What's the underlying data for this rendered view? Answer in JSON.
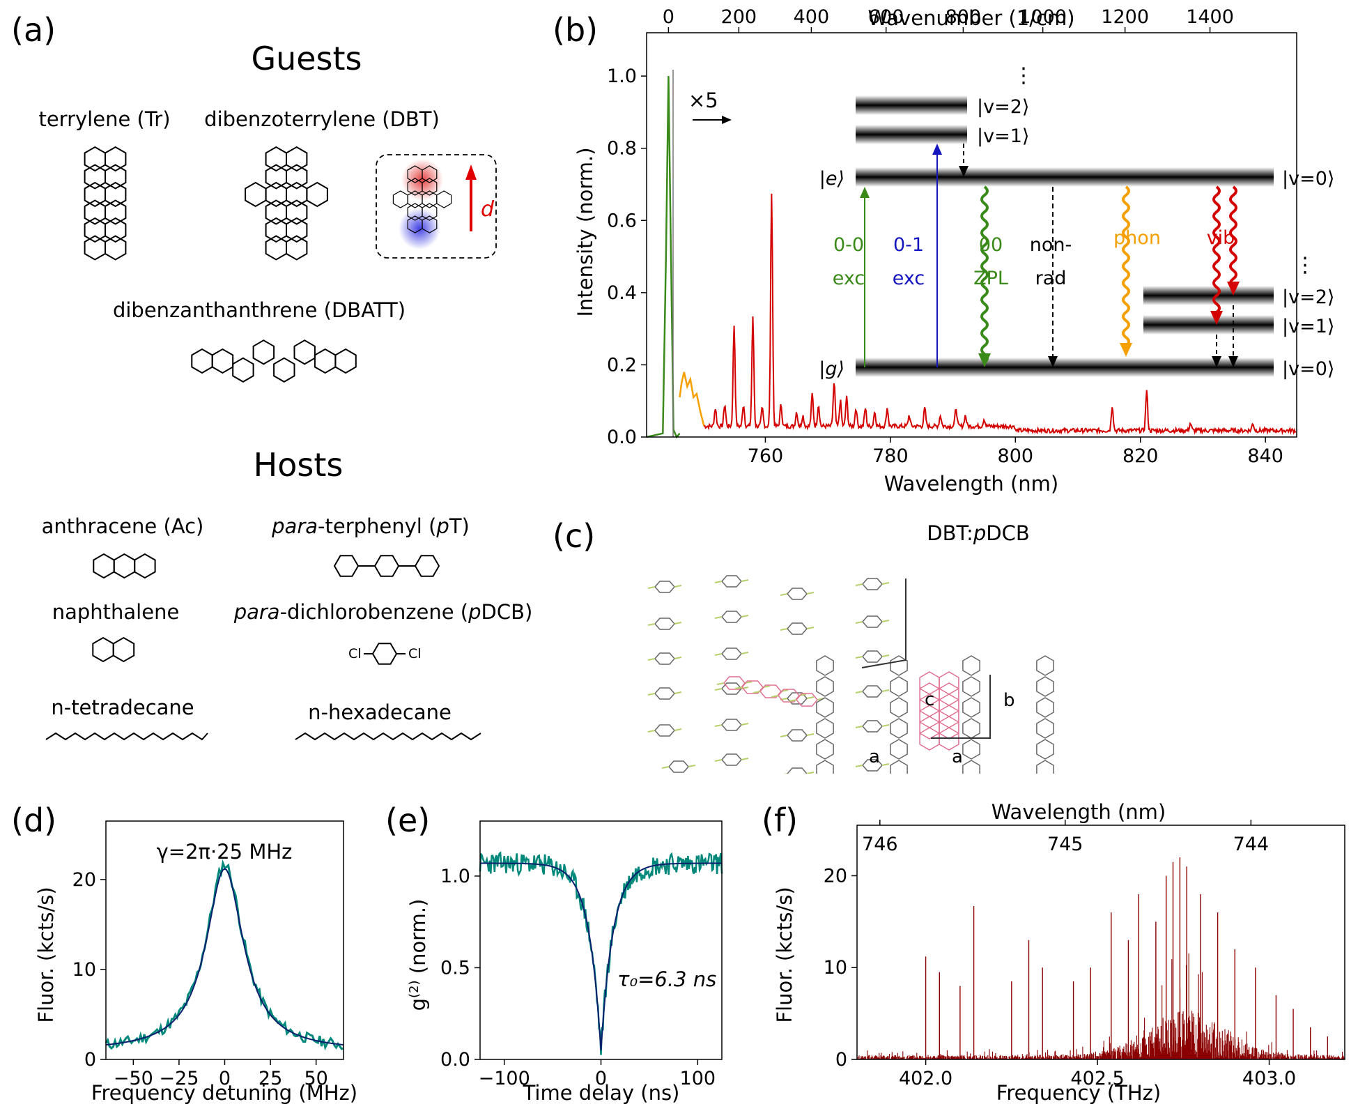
{
  "panels": {
    "a": "(a)",
    "b": "(b)",
    "c": "(c)",
    "d": "(d)",
    "e": "(e)",
    "f": "(f)"
  },
  "panel_a": {
    "guests_title": "Guests",
    "hosts_title": "Hosts",
    "guests": [
      "terrylene (Tr)",
      "dibenzoterrylene (DBT)",
      "dibenzanthanthrene (DBATT)"
    ],
    "dipole_label": "d",
    "hosts": [
      {
        "prefix": "",
        "name": "anthracene (Ac)"
      },
      {
        "prefix": "para",
        "name": "-terphenyl (",
        "italic": "p",
        "suffix": "T)"
      },
      {
        "prefix": "",
        "name": "naphthalene"
      },
      {
        "prefix": "para",
        "name": "-dichlorobenzene (",
        "italic": "p",
        "suffix": "DCB)"
      },
      {
        "prefix": "",
        "name": "n-tetradecane"
      },
      {
        "prefix": "",
        "name": "n-hexadecane"
      }
    ],
    "cl_label": "Cl"
  },
  "chart_data": [
    {
      "id": "b",
      "type": "line",
      "xlabel": "Wavelength (nm)",
      "x2label": "Wavenumber (1/cm)",
      "ylabel": "Intensity (norm.)",
      "xlim": [
        741,
        845
      ],
      "ylim": [
        0,
        1.12
      ],
      "xticks": [
        760,
        780,
        800,
        820,
        840
      ],
      "x2ticks": [
        0,
        200,
        400,
        600,
        800,
        1000,
        1200,
        1400
      ],
      "yticks": [
        0.0,
        0.2,
        0.4,
        0.6,
        0.8,
        1.0
      ],
      "scale_annotation": "×5",
      "series": [
        {
          "color": "#3a8a1a",
          "x": [
            741,
            743.6,
            744.1,
            744.5,
            744.9,
            745.3,
            745.8,
            746.3
          ],
          "y": [
            0.0,
            0.01,
            0.5,
            1.0,
            0.5,
            0.02,
            0.0,
            0.01
          ]
        },
        {
          "color": "#f5a000",
          "x": [
            746.3,
            746.6,
            747.0,
            747.5,
            748.0,
            748.5,
            749.0,
            749.6,
            750.2
          ],
          "y": [
            0.11,
            0.15,
            0.18,
            0.14,
            0.16,
            0.11,
            0.12,
            0.07,
            0.03
          ]
        },
        {
          "color": "#d40000",
          "peaks": [
            [
              752,
              0.05
            ],
            [
              753.5,
              0.06
            ],
            [
              755,
              0.28
            ],
            [
              756.5,
              0.06
            ],
            [
              758,
              0.3
            ],
            [
              759.5,
              0.05
            ],
            [
              761,
              0.65
            ],
            [
              762.5,
              0.06
            ],
            [
              765,
              0.04
            ],
            [
              766,
              0.03
            ],
            [
              767.5,
              0.09
            ],
            [
              768.5,
              0.06
            ],
            [
              771,
              0.12
            ],
            [
              772,
              0.07
            ],
            [
              773,
              0.08
            ],
            [
              774.5,
              0.05
            ],
            [
              776,
              0.05
            ],
            [
              777.5,
              0.04
            ],
            [
              779.5,
              0.05
            ],
            [
              783,
              0.03
            ],
            [
              785.5,
              0.05
            ],
            [
              788,
              0.03
            ],
            [
              790.5,
              0.05
            ],
            [
              792,
              0.03
            ],
            [
              795,
              0.02
            ],
            [
              815.5,
              0.07
            ],
            [
              821,
              0.11
            ],
            [
              828,
              0.02
            ],
            [
              838,
              0.02
            ]
          ]
        }
      ],
      "levels": {
        "e_label": "|e⟩",
        "g_label": "|g⟩",
        "v_upper": [
          "|v=2⟩",
          "|v=1⟩",
          "|v=0⟩"
        ],
        "v_lower": [
          "|v=2⟩",
          "|v=1⟩",
          "|v=0⟩"
        ],
        "dots": "⋮",
        "transitions": [
          {
            "l1": "0-0",
            "l2": "exc",
            "color": "#3a8a1a"
          },
          {
            "l1": "0-1",
            "l2": "exc",
            "color": "#1515c0"
          },
          {
            "l1": "00",
            "l2": "ZPL",
            "color": "#3a8a1a"
          },
          {
            "l1": "non-",
            "l2": "rad",
            "color": "#000000"
          },
          {
            "l1": "phon",
            "l2": "",
            "color": "#f5a000"
          },
          {
            "l1": "vib",
            "l2": "",
            "color": "#d40000"
          }
        ]
      }
    },
    {
      "id": "d",
      "type": "line",
      "xlabel": "Frequency detuning (MHz)",
      "ylabel": "Fluor. (kcts/s)",
      "xlim": [
        -65,
        65
      ],
      "ylim": [
        0,
        26.5
      ],
      "xticks": [
        -50,
        -25,
        0,
        25,
        50
      ],
      "yticks": [
        0,
        10,
        20
      ],
      "annotation": "γ=2π·25 MHz",
      "series": [
        {
          "name": "data",
          "color": "#00897b",
          "lorentz": {
            "amp": 20.8,
            "center": 0,
            "fwhm": 25,
            "offset": 0.9,
            "noise": 0.6
          }
        },
        {
          "name": "fit",
          "color": "#0a1f6e",
          "lorentz": {
            "amp": 20.3,
            "center": 0,
            "fwhm": 25,
            "offset": 0.9,
            "noise": 0
          }
        }
      ]
    },
    {
      "id": "e",
      "type": "line",
      "xlabel": "Time delay (ns)",
      "ylabel": "g(2) (norm.)",
      "xlim": [
        -125,
        125
      ],
      "ylim": [
        0,
        1.3
      ],
      "xticks": [
        -100,
        0,
        100
      ],
      "yticks": [
        0.0,
        0.5,
        1.0
      ],
      "annotation": "τ₀=6.3 ns",
      "series": [
        {
          "name": "data",
          "color": "#00897b",
          "dip": {
            "base": 1.07,
            "depth": 1.02,
            "tau": 6.3,
            "noise": 0.06
          }
        },
        {
          "name": "fit",
          "color": "#0a1f6e",
          "dip": {
            "base": 1.07,
            "depth": 1.02,
            "tau": 6.3,
            "noise": 0
          }
        }
      ]
    },
    {
      "id": "f",
      "type": "bar",
      "xlabel": "Frequency (THz)",
      "x2label": "Wavelength (nm)",
      "ylabel": "Fluor. (kcts/s)",
      "xlim": [
        401.8,
        403.22
      ],
      "ylim": [
        0,
        25.5
      ],
      "xticks": [
        402.0,
        402.5,
        403.0
      ],
      "yticks": [
        0,
        10,
        20
      ],
      "x2ticks": [
        746,
        745,
        744
      ],
      "color": "#8b0000",
      "tall_lines": [
        [
          402.0,
          11.2
        ],
        [
          402.04,
          9.5
        ],
        [
          402.1,
          8
        ],
        [
          402.14,
          16.7
        ],
        [
          402.25,
          8.5
        ],
        [
          402.3,
          13
        ],
        [
          402.34,
          10
        ],
        [
          402.43,
          8.5
        ],
        [
          402.48,
          10
        ],
        [
          402.54,
          16
        ],
        [
          402.59,
          13
        ],
        [
          402.62,
          18
        ],
        [
          402.67,
          15
        ],
        [
          402.7,
          20
        ],
        [
          402.72,
          21.5
        ],
        [
          402.74,
          22
        ],
        [
          402.76,
          21
        ],
        [
          402.8,
          18
        ],
        [
          402.85,
          16
        ],
        [
          402.9,
          12
        ],
        [
          402.96,
          10
        ],
        [
          403.02,
          7
        ],
        [
          403.07,
          5.5
        ],
        [
          403.12,
          3.5
        ],
        [
          403.17,
          2.5
        ]
      ]
    }
  ],
  "panel_c": {
    "title": "DBT:",
    "title_italic": "p",
    "title_suffix": "DCB",
    "axes_left": [
      "c",
      "a"
    ],
    "axes_right": [
      "b",
      "a"
    ]
  }
}
